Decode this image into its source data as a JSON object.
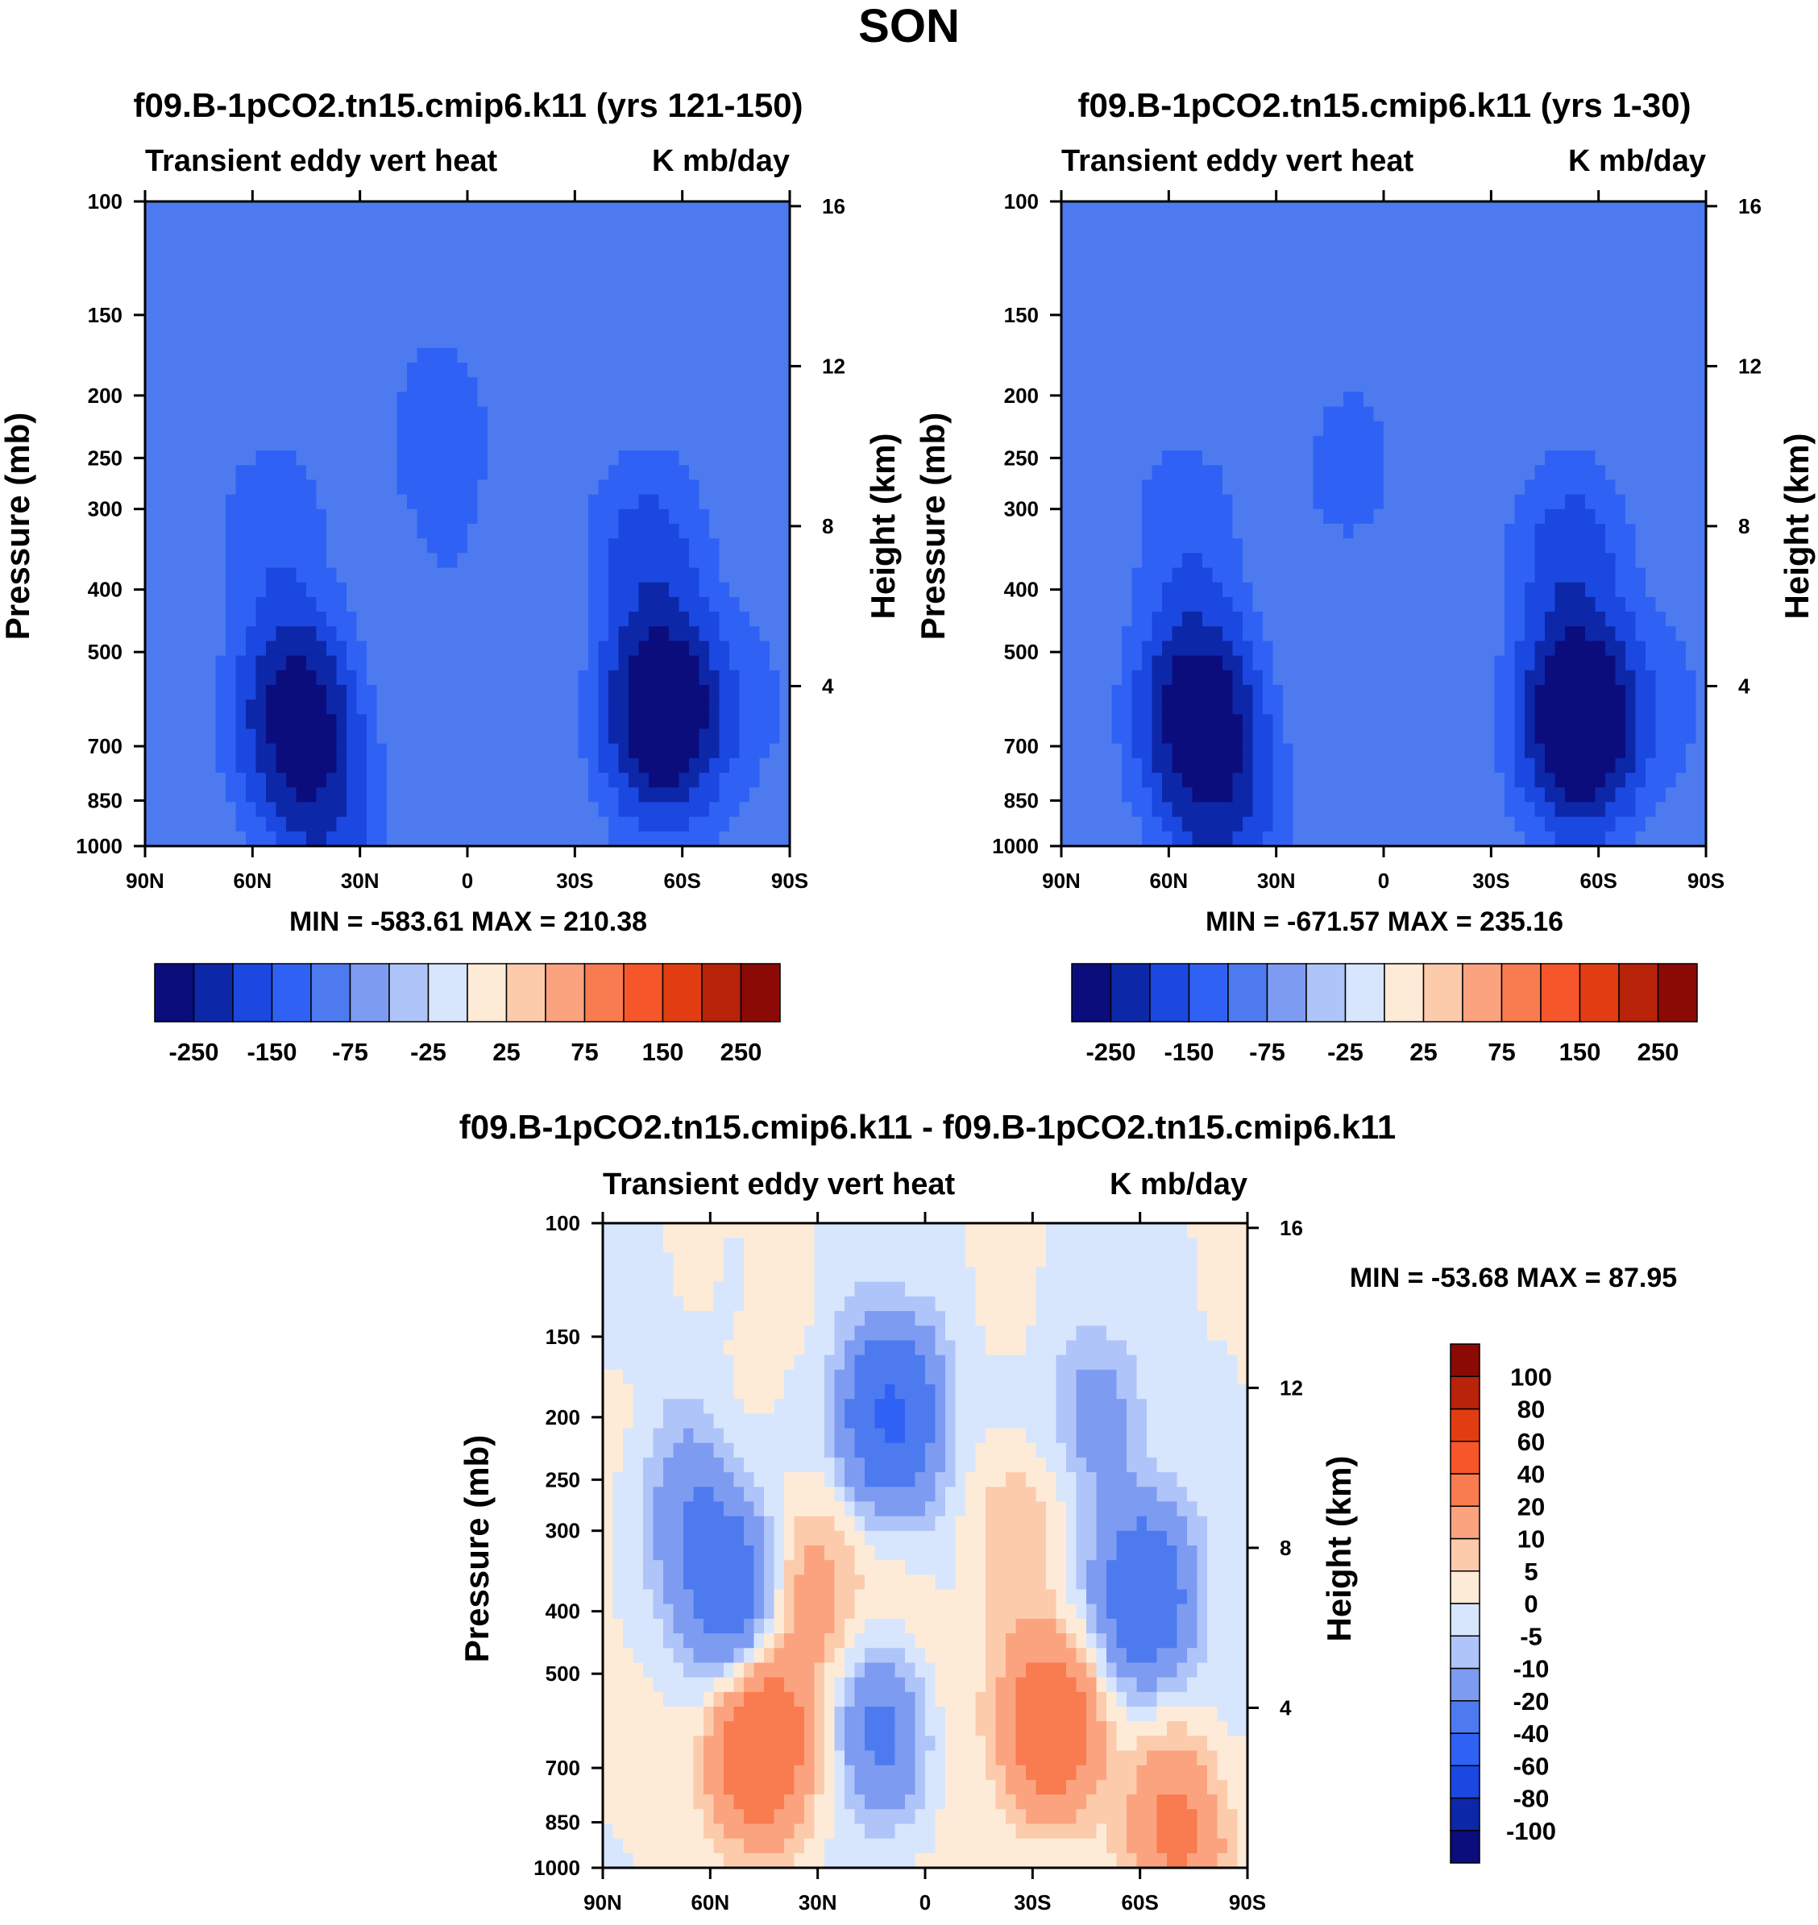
{
  "page_title": "SON",
  "chart_data": [
    {
      "type": "heatmap",
      "title": "f09.B-1pCO2.tn15.cmip6.k11 (yrs 121-150)",
      "subtitle_left": "Transient eddy vert heat",
      "subtitle_right": "K mb/day",
      "ylabel": "Pressure (mb)",
      "ylabel_right": "Height (km)",
      "x_ticks": [
        "90N",
        "60N",
        "30N",
        "0",
        "30S",
        "60S",
        "90S"
      ],
      "x_range": [
        90,
        -90
      ],
      "y_ticks": [
        100,
        150,
        200,
        250,
        300,
        400,
        500,
        700,
        850,
        1000
      ],
      "y_range": [
        1000,
        100
      ],
      "y_ticks_right": [
        4,
        8,
        12,
        16
      ],
      "stats": "MIN = -583.61   MAX = 210.38",
      "levels": [
        -250,
        -150,
        -75,
        -25,
        25,
        75,
        150,
        250
      ],
      "colors": [
        "#0b0d7d",
        "#0d27a9",
        "#1a48e0",
        "#2f62f4",
        "#4d7bef",
        "#7d9cf1",
        "#afc4f8",
        "#d7e6fc",
        "#fdebd8",
        "#fccbac",
        "#fba37f",
        "#f97b50",
        "#f6562a",
        "#e23d12",
        "#b8230a",
        "#8b0a06"
      ],
      "features": [
        {
          "lat": 48,
          "p": 620,
          "amp": -330
        },
        {
          "lat": 40,
          "p": 860,
          "amp": -140
        },
        {
          "lat": 54,
          "p": 330,
          "amp": -60
        },
        {
          "lat": -55,
          "p": 620,
          "amp": -480
        },
        {
          "lat": -50,
          "p": 350,
          "amp": -110
        },
        {
          "lat": 8,
          "p": 230,
          "amp": -60
        },
        {
          "lat": 5,
          "p": 400,
          "amp": -22
        },
        {
          "lat": -80,
          "p": 600,
          "amp": -30
        },
        {
          "lat": -20,
          "p": 480,
          "amp": 22
        },
        {
          "lat": 25,
          "p": 580,
          "amp": 16
        }
      ]
    },
    {
      "type": "heatmap",
      "title": "f09.B-1pCO2.tn15.cmip6.k11 (yrs 1-30)",
      "subtitle_left": "Transient eddy vert heat",
      "subtitle_right": "K mb/day",
      "ylabel": "Pressure (mb)",
      "ylabel_right": "Height (km)",
      "x_ticks": [
        "90N",
        "60N",
        "30N",
        "0",
        "30S",
        "60S",
        "90S"
      ],
      "x_range": [
        90,
        -90
      ],
      "y_ticks": [
        100,
        150,
        200,
        250,
        300,
        400,
        500,
        700,
        850,
        1000
      ],
      "y_range": [
        1000,
        100
      ],
      "y_ticks_right": [
        4,
        8,
        12,
        16
      ],
      "stats": "MIN = -671.57   MAX = 235.16",
      "levels": [
        -250,
        -150,
        -75,
        -25,
        25,
        75,
        150,
        250
      ],
      "colors": [
        "#0b0d7d",
        "#0d27a9",
        "#1a48e0",
        "#2f62f4",
        "#4d7bef",
        "#7d9cf1",
        "#afc4f8",
        "#d7e6fc",
        "#fdebd8",
        "#fccbac",
        "#fba37f",
        "#f97b50",
        "#f6562a",
        "#e23d12",
        "#b8230a",
        "#8b0a06"
      ],
      "features": [
        {
          "lat": 52,
          "p": 620,
          "amp": -380
        },
        {
          "lat": 45,
          "p": 860,
          "amp": -150
        },
        {
          "lat": 55,
          "p": 330,
          "amp": -60
        },
        {
          "lat": -55,
          "p": 640,
          "amp": -520
        },
        {
          "lat": -52,
          "p": 360,
          "amp": -120
        },
        {
          "lat": 10,
          "p": 260,
          "amp": -45
        },
        {
          "lat": -80,
          "p": 600,
          "amp": -30
        },
        {
          "lat": 15,
          "p": 560,
          "amp": 20
        },
        {
          "lat": -15,
          "p": 580,
          "amp": 18
        }
      ]
    },
    {
      "type": "heatmap",
      "title": "f09.B-1pCO2.tn15.cmip6.k11 - f09.B-1pCO2.tn15.cmip6.k11",
      "subtitle_left": "Transient eddy vert heat",
      "subtitle_right": "K mb/day",
      "ylabel": "Pressure (mb)",
      "ylabel_right": "Height (km)",
      "x_ticks": [
        "90N",
        "60N",
        "30N",
        "0",
        "30S",
        "60S",
        "90S"
      ],
      "x_range": [
        90,
        -90
      ],
      "y_ticks": [
        100,
        150,
        200,
        250,
        300,
        400,
        500,
        700,
        850,
        1000
      ],
      "y_range": [
        1000,
        100
      ],
      "y_ticks_right": [
        4,
        8,
        12,
        16
      ],
      "stats": "MIN = -53.68   MAX =  87.95",
      "levels": [
        -100,
        -80,
        -60,
        -40,
        -20,
        -10,
        -5,
        0,
        5,
        10,
        20,
        40,
        60,
        80,
        100
      ],
      "colors": [
        "#0b0d7d",
        "#0d27a9",
        "#1a48e0",
        "#2f62f4",
        "#4d7bef",
        "#7d9cf1",
        "#afc4f8",
        "#d7e6fc",
        "#fdebd8",
        "#fccbac",
        "#fba37f",
        "#f97b50",
        "#f6562a",
        "#e23d12",
        "#b8230a",
        "#8b0a06"
      ],
      "features": [
        {
          "lat": 55,
          "p": 380,
          "amp": -28
        },
        {
          "lat": 65,
          "p": 280,
          "amp": -14
        },
        {
          "lat": 10,
          "p": 200,
          "amp": -42
        },
        {
          "lat": 12,
          "p": 600,
          "amp": -26
        },
        {
          "lat": -60,
          "p": 380,
          "amp": -38
        },
        {
          "lat": -45,
          "p": 200,
          "amp": -14
        },
        {
          "lat": 45,
          "p": 650,
          "amp": 42
        },
        {
          "lat": 30,
          "p": 380,
          "amp": 14
        },
        {
          "lat": -35,
          "p": 600,
          "amp": 38
        },
        {
          "lat": -25,
          "p": 300,
          "amp": 10
        },
        {
          "lat": -70,
          "p": 880,
          "amp": 22
        },
        {
          "lat": 0,
          "p": 500,
          "amp": 6
        }
      ]
    }
  ]
}
